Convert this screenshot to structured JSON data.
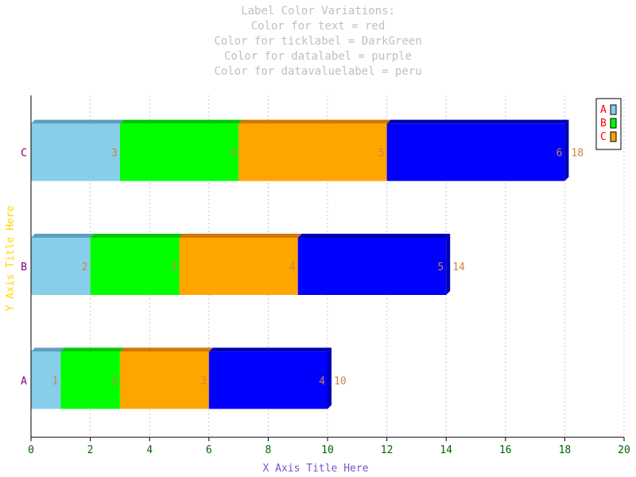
{
  "title_lines": [
    "Label Color Variations:",
    "Color for text = red",
    "Color for ticklabel = DarkGreen",
    "Color for datalabel = purple",
    "Color for datavaluelabel = peru"
  ],
  "colors": {
    "title": "#c0c0c0",
    "text": "#ff0000",
    "ticklabel": "#006400",
    "datalabel": "#800080",
    "datavaluelabel": "#cd853f",
    "axis_title": "#6a5acd",
    "y_axis_title": "#ffd700",
    "grid": "#c8c8c8"
  },
  "chart_data": {
    "type": "bar",
    "orientation": "horizontal",
    "stacked": true,
    "categories": [
      "A",
      "B",
      "C"
    ],
    "series": [
      {
        "values": [
          1,
          2,
          3
        ],
        "color": "#87ceeb",
        "top_color": "#5aa0c0"
      },
      {
        "values": [
          2,
          3,
          4
        ],
        "color": "#00ff00",
        "top_color": "#00c800"
      },
      {
        "values": [
          3,
          4,
          5
        ],
        "color": "#ffa500",
        "top_color": "#d07800"
      },
      {
        "values": [
          4,
          5,
          6
        ],
        "color": "#0000ff",
        "top_color": "#0000b4"
      }
    ],
    "totals": [
      10,
      14,
      18
    ],
    "xlabel": "X Axis Title Here",
    "ylabel": "Y Axis Title Here",
    "xlim": [
      0,
      20
    ],
    "xticks": [
      0,
      2,
      4,
      6,
      8,
      10,
      12,
      14,
      16,
      18,
      20
    ],
    "grid": "vertical dotted",
    "legend": {
      "placement": "top-right",
      "entries": [
        {
          "label": "A",
          "color": "#87ceeb"
        },
        {
          "label": "B",
          "color": "#00ff00"
        },
        {
          "label": "C",
          "color": "#ffa500"
        }
      ]
    }
  }
}
